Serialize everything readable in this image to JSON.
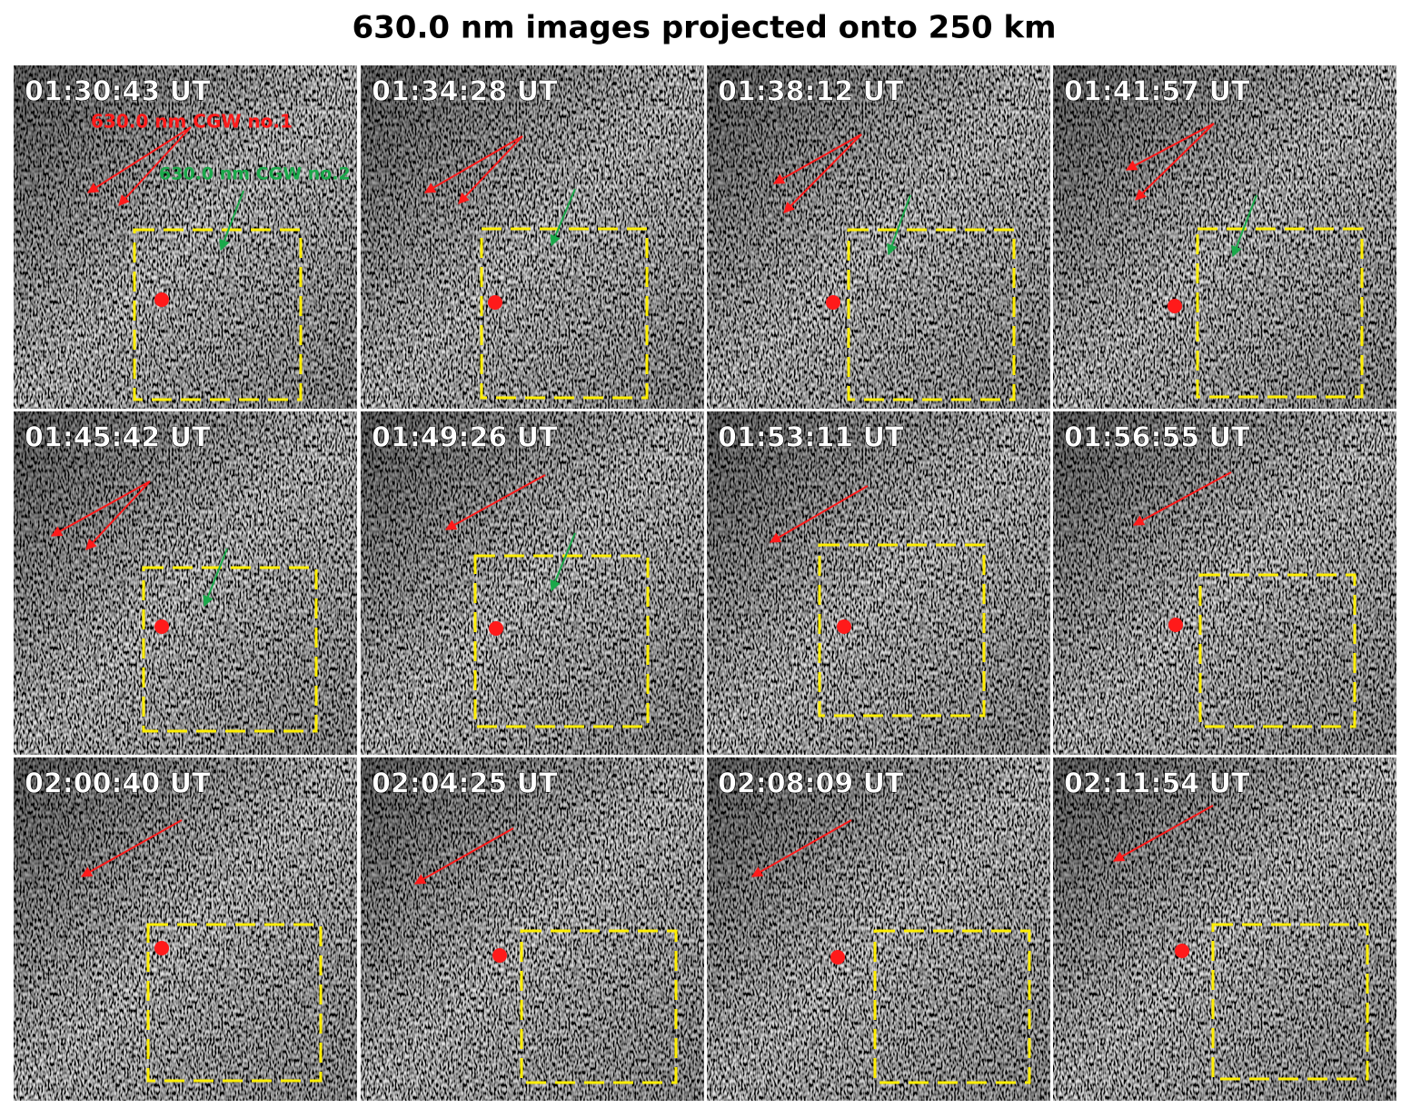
{
  "title": "630.0 nm images projected onto 250 km",
  "annotations": {
    "cgw1": "630.0 nm CGW no.1",
    "cgw2": "630.0 nm CGW no.2"
  },
  "panels": [
    "01:30:43 UT",
    "01:34:28 UT",
    "01:38:12 UT",
    "01:41:57 UT",
    "01:45:42 UT",
    "01:49:26 UT",
    "01:53:11 UT",
    "01:56:55 UT",
    "02:00:40 UT",
    "02:04:25 UT",
    "02:08:09 UT",
    "02:11:54 UT"
  ]
}
